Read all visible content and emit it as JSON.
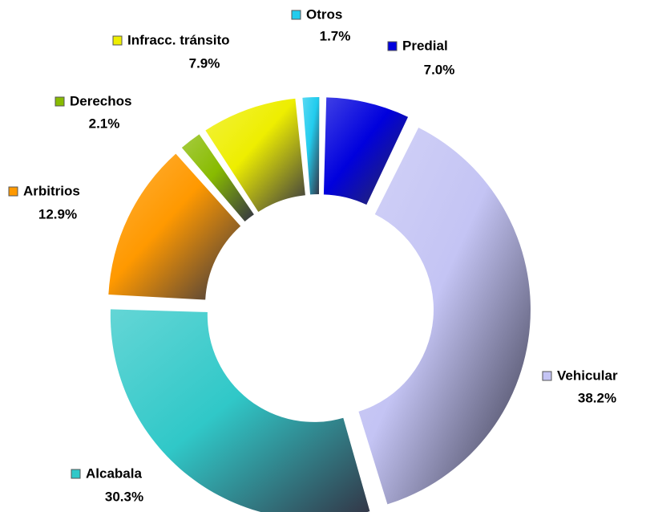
{
  "chart_data": {
    "type": "donut",
    "categories": [
      "Predial",
      "Vehicular",
      "Alcabala",
      "Arbitrios",
      "Derechos",
      "Infracc. tránsito",
      "Otros"
    ],
    "values": [
      7.0,
      38.2,
      30.3,
      12.9,
      2.1,
      7.9,
      1.7
    ],
    "value_labels": [
      "7.0%",
      "38.2%",
      "30.3%",
      "12.9%",
      "2.1%",
      "7.9%",
      "1.7%"
    ],
    "colors": [
      "#0000dd",
      "#c4c4f4",
      "#30c8c8",
      "#ff9900",
      "#88bb00",
      "#eeee00",
      "#22ccee"
    ]
  }
}
